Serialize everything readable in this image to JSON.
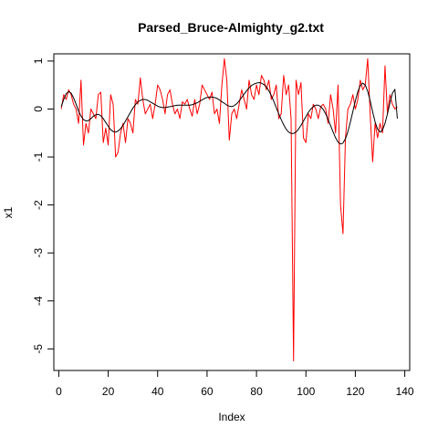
{
  "chart_data": {
    "type": "line",
    "title": "Parsed_Bruce-Almighty_g2.txt",
    "xlabel": "Index",
    "ylabel": "x1",
    "xlim": [
      -2,
      142
    ],
    "ylim": [
      -5.45,
      1.15
    ],
    "xticks": [
      0,
      20,
      40,
      60,
      80,
      100,
      120,
      140
    ],
    "xtick_labels": [
      "0",
      "20",
      "40",
      "60",
      "80",
      "100",
      "120",
      "140"
    ],
    "yticks": [
      1,
      0,
      -1,
      -2,
      -3,
      -4,
      -5
    ],
    "ytick_labels": [
      "1",
      "0",
      "-1",
      "-2",
      "-3",
      "-4",
      "-5"
    ],
    "grid": false,
    "legend": "none",
    "series": [
      {
        "color": "#ff0000",
        "x": [
          1,
          2,
          3,
          4,
          5,
          6,
          7,
          8,
          9,
          10,
          11,
          12,
          13,
          14,
          15,
          16,
          17,
          18,
          19,
          20,
          21,
          22,
          23,
          24,
          25,
          26,
          27,
          28,
          29,
          30,
          31,
          32,
          33,
          34,
          35,
          36,
          37,
          38,
          39,
          40,
          41,
          42,
          43,
          44,
          45,
          46,
          47,
          48,
          49,
          50,
          51,
          52,
          53,
          54,
          55,
          56,
          57,
          58,
          59,
          60,
          61,
          62,
          63,
          64,
          65,
          66,
          67,
          68,
          69,
          70,
          71,
          72,
          73,
          74,
          75,
          76,
          77,
          78,
          79,
          80,
          81,
          82,
          83,
          84,
          85,
          86,
          87,
          88,
          89,
          90,
          91,
          92,
          93,
          94,
          95,
          96,
          97,
          98,
          99,
          100,
          101,
          102,
          103,
          104,
          105,
          106,
          107,
          108,
          109,
          110,
          111,
          112,
          113,
          114,
          115,
          116,
          117,
          118,
          119,
          120,
          121,
          122,
          123,
          124,
          125,
          126,
          127,
          128,
          129,
          130,
          131,
          132,
          133,
          134,
          135,
          136,
          137
        ],
        "y": [
          0.0,
          0.3,
          0.2,
          0.4,
          0.3,
          0.1,
          0.0,
          -0.3,
          0.6,
          -0.75,
          -0.3,
          -0.5,
          0.0,
          -0.1,
          -0.2,
          0.3,
          0.35,
          -0.7,
          -0.4,
          -0.75,
          0.3,
          0.1,
          -1.0,
          -0.9,
          -0.5,
          -0.3,
          -0.7,
          -0.2,
          -0.3,
          -0.5,
          0.2,
          0.1,
          0.65,
          0.2,
          -0.1,
          0.0,
          0.1,
          -0.2,
          0.1,
          0.5,
          0.4,
          0.2,
          -0.1,
          0.3,
          0.4,
          0.1,
          -0.1,
          0.0,
          -0.2,
          0.15,
          0.1,
          0.2,
          0.0,
          -0.15,
          0.2,
          -0.1,
          0.1,
          0.5,
          0.4,
          0.3,
          0.2,
          0.35,
          -0.1,
          0.0,
          -0.3,
          0.5,
          1.05,
          0.6,
          -0.65,
          -0.1,
          0.0,
          -0.2,
          0.1,
          0.4,
          0.2,
          0.0,
          0.6,
          0.3,
          0.2,
          0.5,
          0.3,
          0.7,
          0.6,
          0.4,
          0.6,
          0.2,
          0.3,
          0.5,
          -0.2,
          -0.1,
          0.7,
          0.3,
          0.5,
          -0.2,
          -5.25,
          0.6,
          0.3,
          0.55,
          -0.6,
          -0.7,
          -0.1,
          -0.2,
          0.1,
          0.0,
          -0.2,
          0.05,
          0.1,
          0.0,
          -0.3,
          0.3,
          0.0,
          -0.5,
          0.5,
          -2.0,
          -2.6,
          -0.6,
          0.0,
          0.1,
          0.3,
          0.0,
          0.2,
          0.6,
          0.4,
          0.5,
          1.05,
          -0.1,
          -1.1,
          -0.3,
          -0.6,
          -0.3,
          -0.5,
          0.9,
          -0.1,
          0.3,
          0.1,
          0.0,
          0.05
        ]
      },
      {
        "color": "#000000",
        "x": [
          1,
          2,
          3,
          4,
          5,
          6,
          7,
          8,
          9,
          10,
          11,
          12,
          13,
          14,
          15,
          16,
          17,
          18,
          19,
          20,
          21,
          22,
          23,
          24,
          25,
          26,
          27,
          28,
          29,
          30,
          31,
          32,
          33,
          34,
          35,
          36,
          37,
          38,
          39,
          40,
          41,
          42,
          43,
          44,
          45,
          46,
          47,
          48,
          49,
          50,
          51,
          52,
          53,
          54,
          55,
          56,
          57,
          58,
          59,
          60,
          61,
          62,
          63,
          64,
          65,
          66,
          67,
          68,
          69,
          70,
          71,
          72,
          73,
          74,
          75,
          76,
          77,
          78,
          79,
          80,
          81,
          82,
          83,
          84,
          85,
          86,
          87,
          88,
          89,
          90,
          91,
          92,
          93,
          94,
          95,
          96,
          97,
          98,
          99,
          100,
          101,
          102,
          103,
          104,
          105,
          106,
          107,
          108,
          109,
          110,
          111,
          112,
          113,
          114,
          115,
          116,
          117,
          118,
          119,
          120,
          121,
          122,
          123,
          124,
          125,
          126,
          127,
          128,
          129,
          130,
          131,
          132,
          133,
          134,
          135,
          136,
          137
        ],
        "y": [
          0.05,
          0.2,
          0.32,
          0.36,
          0.33,
          0.23,
          0.1,
          -0.04,
          -0.15,
          -0.22,
          -0.25,
          -0.24,
          -0.2,
          -0.15,
          -0.12,
          -0.11,
          -0.14,
          -0.2,
          -0.28,
          -0.36,
          -0.43,
          -0.47,
          -0.48,
          -0.46,
          -0.41,
          -0.34,
          -0.25,
          -0.16,
          -0.07,
          0.02,
          0.09,
          0.15,
          0.18,
          0.2,
          0.2,
          0.18,
          0.15,
          0.12,
          0.09,
          0.06,
          0.04,
          0.03,
          0.03,
          0.04,
          0.05,
          0.06,
          0.07,
          0.08,
          0.08,
          0.08,
          0.08,
          0.08,
          0.08,
          0.09,
          0.11,
          0.13,
          0.16,
          0.19,
          0.22,
          0.24,
          0.25,
          0.25,
          0.24,
          0.22,
          0.19,
          0.15,
          0.12,
          0.08,
          0.06,
          0.05,
          0.07,
          0.11,
          0.17,
          0.24,
          0.31,
          0.38,
          0.44,
          0.49,
          0.52,
          0.54,
          0.55,
          0.54,
          0.51,
          0.46,
          0.38,
          0.28,
          0.16,
          0.03,
          -0.1,
          -0.22,
          -0.33,
          -0.42,
          -0.48,
          -0.51,
          -0.51,
          -0.48,
          -0.42,
          -0.34,
          -0.25,
          -0.16,
          -0.07,
          0.0,
          0.05,
          0.08,
          0.08,
          0.05,
          -0.01,
          -0.1,
          -0.22,
          -0.35,
          -0.48,
          -0.6,
          -0.69,
          -0.73,
          -0.71,
          -0.62,
          -0.47,
          -0.27,
          -0.05,
          0.17,
          0.36,
          0.49,
          0.54,
          0.5,
          0.37,
          0.17,
          -0.06,
          -0.27,
          -0.42,
          -0.48,
          -0.44,
          -0.3,
          -0.1,
          0.13,
          0.33,
          0.41,
          -0.2
        ]
      }
    ]
  }
}
